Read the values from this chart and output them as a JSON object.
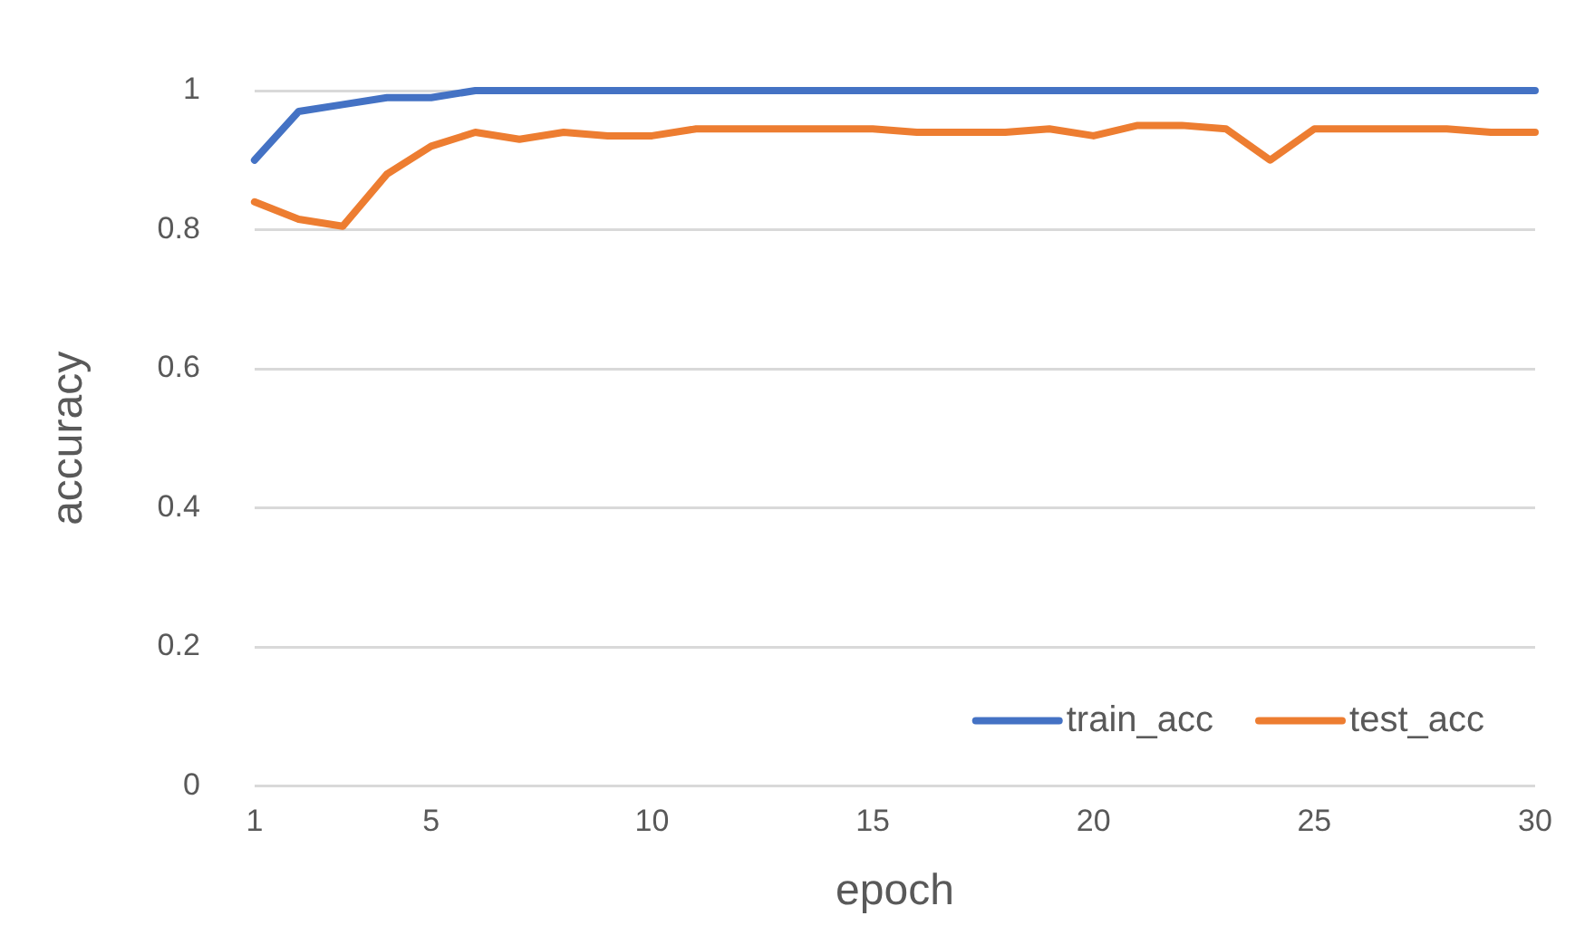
{
  "chart_data": {
    "type": "line",
    "xlabel": "epoch",
    "ylabel": "accuracy",
    "x": [
      1,
      2,
      3,
      4,
      5,
      6,
      7,
      8,
      9,
      10,
      11,
      12,
      13,
      14,
      15,
      16,
      17,
      18,
      19,
      20,
      21,
      22,
      23,
      24,
      25,
      26,
      27,
      28,
      29,
      30
    ],
    "xlim": [
      1,
      30
    ],
    "xticks": [
      1,
      5,
      10,
      15,
      20,
      25,
      30
    ],
    "series": [
      {
        "name": "train_acc",
        "color": "#4472c4",
        "values": [
          0.9,
          0.97,
          0.98,
          0.99,
          0.99,
          1,
          1,
          1,
          1,
          1,
          1,
          1,
          1,
          1,
          1,
          1,
          1,
          1,
          1,
          1,
          1,
          1,
          1,
          1,
          1,
          1,
          1,
          1,
          1,
          1
        ]
      },
      {
        "name": "test_acc",
        "color": "#ed7d31",
        "values": [
          0.84,
          0.815,
          0.805,
          0.88,
          0.92,
          0.94,
          0.93,
          0.94,
          0.935,
          0.935,
          0.945,
          0.945,
          0.945,
          0.945,
          0.945,
          0.94,
          0.94,
          0.94,
          0.945,
          0.935,
          0.95,
          0.95,
          0.945,
          0.9,
          0.945,
          0.945,
          0.945,
          0.945,
          0.94,
          0.94
        ]
      }
    ],
    "ylim": [
      0,
      1
    ],
    "yticks": [
      0,
      0.2,
      0.4,
      0.6,
      0.8,
      1
    ],
    "grid": "y",
    "legend": "bottom right",
    "marker": "none",
    "line_style": "solid"
  }
}
